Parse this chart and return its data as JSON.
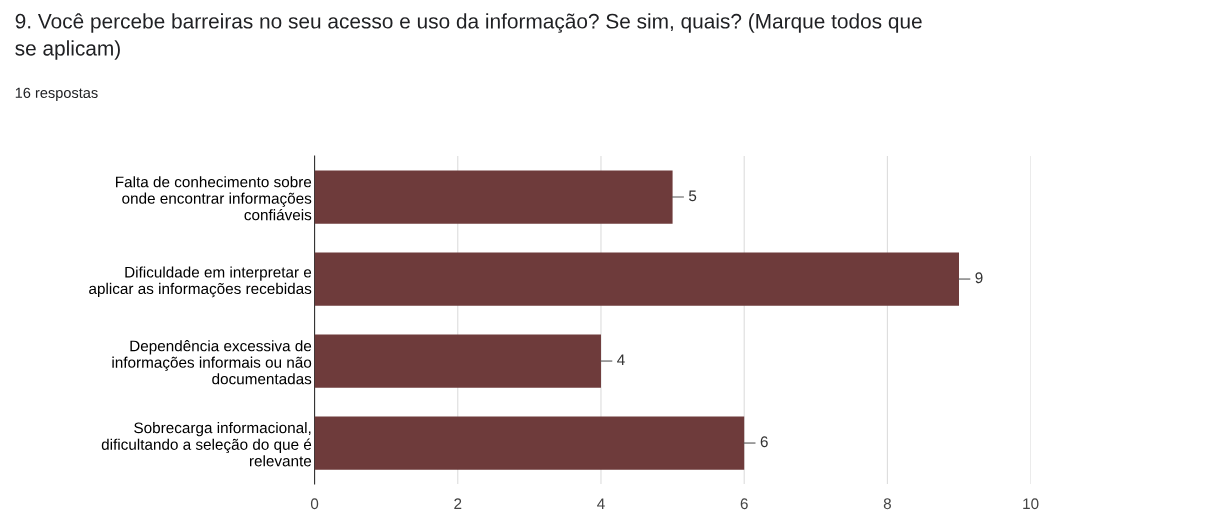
{
  "chart_data": {
    "type": "bar",
    "orientation": "horizontal",
    "title": "9. Você percebe barreiras no seu acesso e uso da informação? Se sim, quais? (Marque todos que\nse aplicam)",
    "subtitle": "16 respostas",
    "categories": [
      "Falta de conhecimento sobre\nonde encontrar informações\nconfiáveis",
      "Dificuldade em interpretar e\naplicar as informações recebidas",
      "Dependência excessiva de\ninformações informais ou não\ndocumentadas",
      "Sobrecarga informacional,\ndificultando a seleção do que é\nrelevante"
    ],
    "values": [
      5,
      9,
      4,
      6
    ],
    "color": "#6e3b3b",
    "xlim": [
      0,
      10
    ],
    "xticks": [
      0,
      2,
      4,
      6,
      8,
      10
    ],
    "grid": "x",
    "data_labels": true
  }
}
